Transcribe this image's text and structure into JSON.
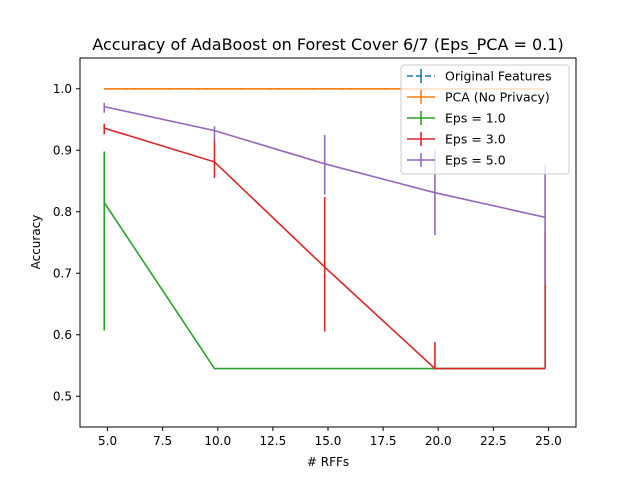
{
  "chart_data": {
    "type": "line",
    "title": "Accuracy of AdaBoost on Forest Cover 6/7 (Eps_PCA = 0.1)",
    "xlabel": "# RFFs",
    "ylabel": "Accuracy",
    "xlim": [
      3.75,
      26.25
    ],
    "ylim": [
      0.45,
      1.05
    ],
    "xticks": [
      5.0,
      7.5,
      10.0,
      12.5,
      15.0,
      17.5,
      20.0,
      22.5,
      25.0
    ],
    "xtick_labels": [
      "5.0",
      "7.5",
      "10.0",
      "12.5",
      "15.0",
      "17.5",
      "20.0",
      "22.5",
      "25.0"
    ],
    "yticks": [
      0.5,
      0.6,
      0.7,
      0.8,
      0.9,
      1.0
    ],
    "ytick_labels": [
      "0.5",
      "0.6",
      "0.7",
      "0.8",
      "0.9",
      "1.0"
    ],
    "grid": false,
    "legend_position": "top-right",
    "series": [
      {
        "name": "Original Features",
        "color": "#1f77b4",
        "dashed": true,
        "x": [
          4.85,
          9.85,
          14.85,
          19.85,
          24.85
        ],
        "y": [
          1.0,
          1.0,
          1.0,
          1.0,
          1.0
        ],
        "err": [
          0.0,
          0.0,
          0.0,
          0.0,
          0.0
        ]
      },
      {
        "name": "PCA (No Privacy)",
        "color": "#ff7f0e",
        "dashed": false,
        "x": [
          4.85,
          9.85,
          14.85,
          19.85,
          24.85
        ],
        "y": [
          1.0,
          1.0,
          1.0,
          1.0,
          1.0
        ],
        "err": [
          0.0,
          0.0,
          0.0,
          0.0,
          0.0
        ]
      },
      {
        "name": "Eps = 1.0",
        "color": "#2ca02c",
        "dashed": false,
        "x": [
          4.85,
          9.85,
          14.85,
          19.85,
          24.85
        ],
        "y": [
          0.815,
          0.545,
          0.545,
          0.545,
          0.545
        ],
        "err": [
          0.14,
          0.0,
          0.0,
          0.0,
          0.0
        ],
        "err_low": [
          0.208,
          0.0,
          0.0,
          0.0,
          0.0
        ],
        "err_high": [
          0.083,
          0.0,
          0.0,
          0.0,
          0.0
        ]
      },
      {
        "name": "Eps = 3.0",
        "color": "#d62728",
        "dashed": false,
        "x": [
          4.85,
          9.85,
          14.85,
          19.85,
          24.85
        ],
        "y": [
          0.936,
          0.881,
          0.71,
          0.545,
          0.545
        ],
        "err_low": [
          0.01,
          0.026,
          0.105,
          0.0,
          0.0
        ],
        "err_high": [
          0.007,
          0.035,
          0.114,
          0.043,
          0.221
        ]
      },
      {
        "name": "Eps = 5.0",
        "color": "#9467bd",
        "dashed": false,
        "x": [
          4.85,
          9.85,
          14.85,
          19.85,
          24.85
        ],
        "y": [
          0.971,
          0.932,
          0.878,
          0.831,
          0.791
        ],
        "err_low": [
          0.01,
          0.018,
          0.05,
          0.069,
          0.11
        ],
        "err_high": [
          0.006,
          0.007,
          0.047,
          0.069,
          0.085
        ]
      }
    ]
  }
}
